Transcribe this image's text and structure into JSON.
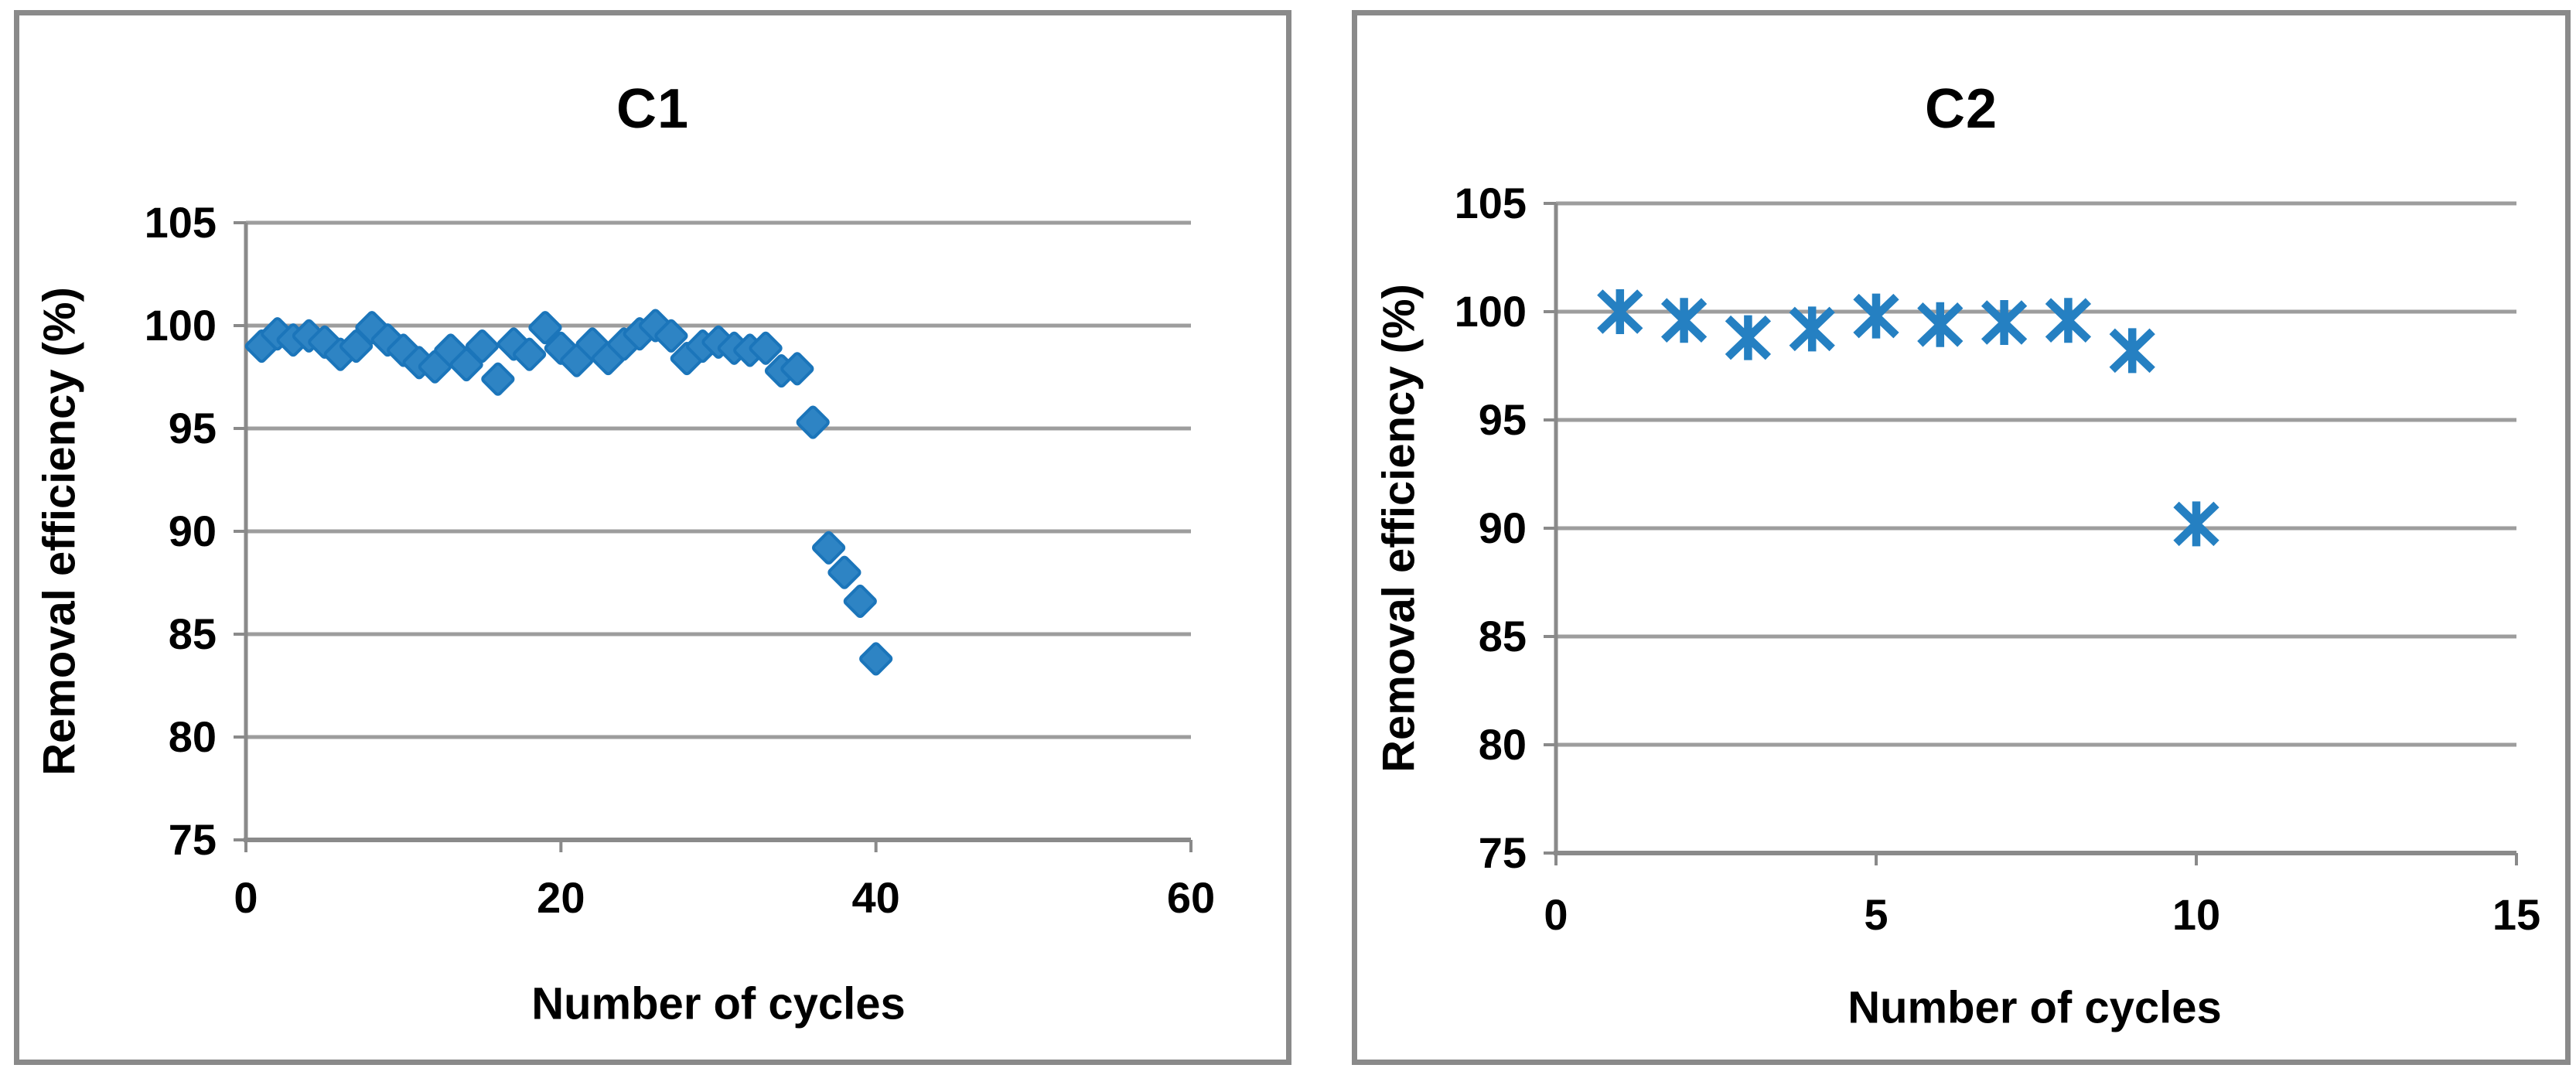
{
  "figure": {
    "description": "Two-panel scatter figure: removal efficiency versus number of regeneration cycles for columns C1 and C2",
    "colors": {
      "marker_fill": "#2e84c4",
      "marker_stroke": "#1b75ba",
      "asterisk": "#2580c2",
      "gridline": "#9d9d9d",
      "axis": "#8a8a8a",
      "frame": "#8a8a8a",
      "text": "#000000",
      "background": "#ffffff"
    }
  },
  "chart_data": [
    {
      "id": "c1",
      "type": "scatter",
      "title": "C1",
      "xlabel": "Number of cycles",
      "ylabel": "Removal efficiency (%)",
      "marker": "diamond",
      "grid": "horizontal",
      "legend": "none",
      "xlim": [
        0,
        60
      ],
      "ylim": [
        75,
        105
      ],
      "xticks": [
        0,
        20,
        40,
        60
      ],
      "yticks": [
        75,
        80,
        85,
        90,
        95,
        100,
        105
      ],
      "x": [
        1,
        2,
        3,
        4,
        5,
        6,
        7,
        8,
        9,
        10,
        11,
        12,
        13,
        14,
        15,
        16,
        17,
        18,
        19,
        20,
        21,
        22,
        23,
        24,
        25,
        26,
        27,
        28,
        29,
        30,
        31,
        32,
        33,
        34,
        35,
        36,
        37,
        38,
        39,
        40
      ],
      "y": [
        99.0,
        99.6,
        99.3,
        99.5,
        99.2,
        98.6,
        99.0,
        99.9,
        99.3,
        98.8,
        98.2,
        98.0,
        98.8,
        98.1,
        99.0,
        97.4,
        99.1,
        98.6,
        99.9,
        98.9,
        98.3,
        99.1,
        98.4,
        99.1,
        99.6,
        100.0,
        99.5,
        98.4,
        99.0,
        99.2,
        98.9,
        98.8,
        98.9,
        97.8,
        97.9,
        95.3,
        89.2,
        88.0,
        86.6,
        83.8
      ]
    },
    {
      "id": "c2",
      "type": "scatter",
      "title": "C2",
      "xlabel": "Number of cycles",
      "ylabel": "Removal efficiency (%)",
      "marker": "asterisk",
      "grid": "horizontal",
      "legend": "none",
      "xlim": [
        0,
        15
      ],
      "ylim": [
        75,
        105
      ],
      "xticks": [
        0,
        5,
        10,
        15
      ],
      "yticks": [
        75,
        80,
        85,
        90,
        95,
        100,
        105
      ],
      "x": [
        1,
        2,
        3,
        4,
        5,
        6,
        7,
        8,
        9,
        10
      ],
      "y": [
        100.0,
        99.6,
        98.8,
        99.2,
        99.8,
        99.4,
        99.5,
        99.6,
        98.2,
        90.2
      ]
    }
  ]
}
